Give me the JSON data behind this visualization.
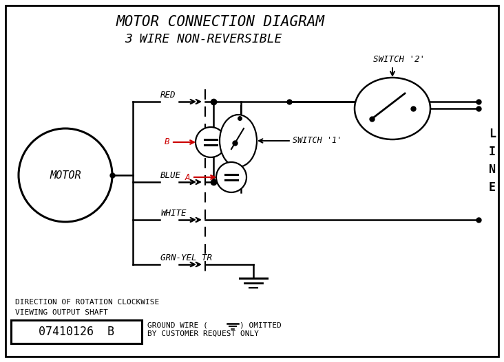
{
  "title_line1": "MOTOR CONNECTION DIAGRAM",
  "title_line2": "3 WIRE NON-REVERSIBLE",
  "bg_color": "#ffffff",
  "border_color": "#000000",
  "motor_label": "MOTOR",
  "wire_labels": [
    "RED",
    "BLUE",
    "WHITE",
    "GRN-YEL TR"
  ],
  "switch1_label": "SWITCH '1'",
  "switch2_label": "SWITCH '2'",
  "line_label": [
    "L",
    "I",
    "N",
    "E"
  ],
  "part_number": "07410126  B",
  "note1": "DIRECTION OF ROTATION CLOCKWISE",
  "note2": "VIEWING OUTPUT SHAFT",
  "note3": "GROUND WIRE (",
  "note4": "BY CUSTOMER REQUEST ONLY",
  "cap_label_b": "B",
  "cap_label_a": "A",
  "red_color": "#cc0000",
  "black_color": "#000000",
  "lw": 1.8
}
